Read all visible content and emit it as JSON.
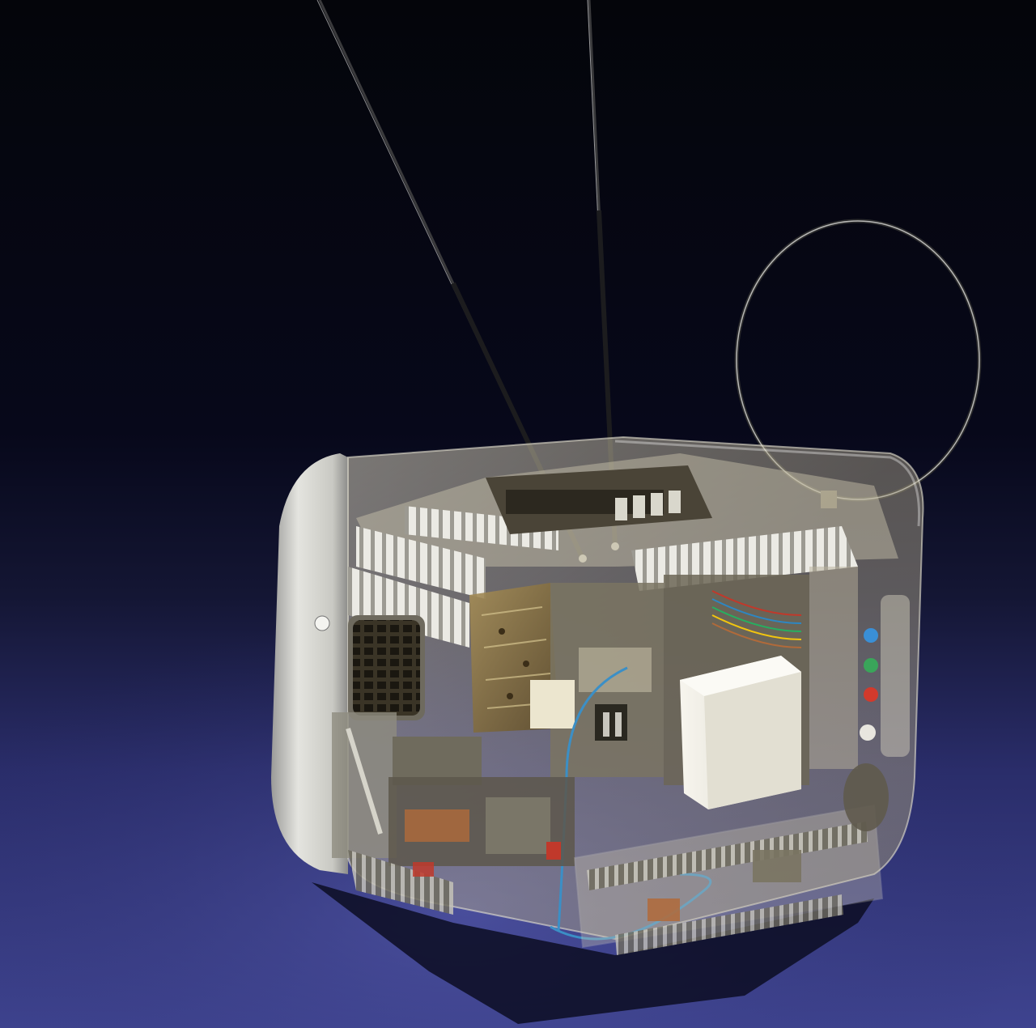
{
  "photo": {
    "subject": "transparent-portable-television",
    "colors": {
      "backdrop_top": "#05060b",
      "backdrop_mid": "#141634",
      "backdrop_floor": "#3a3f8c",
      "floor_light": "#5257ad",
      "cabinet_white": "#d8d8d2",
      "clear_plastic": "#c9c3ad",
      "metal_chrome": "#c8c6bd",
      "circuit_board": "#8a7446",
      "knob_blue": "#3a8fd6",
      "knob_green": "#3aa55a",
      "knob_red": "#d23a2c",
      "wire_blue": "#3b8fc6",
      "copper": "#b06a3a",
      "transformer_white": "#f1efe6"
    }
  }
}
